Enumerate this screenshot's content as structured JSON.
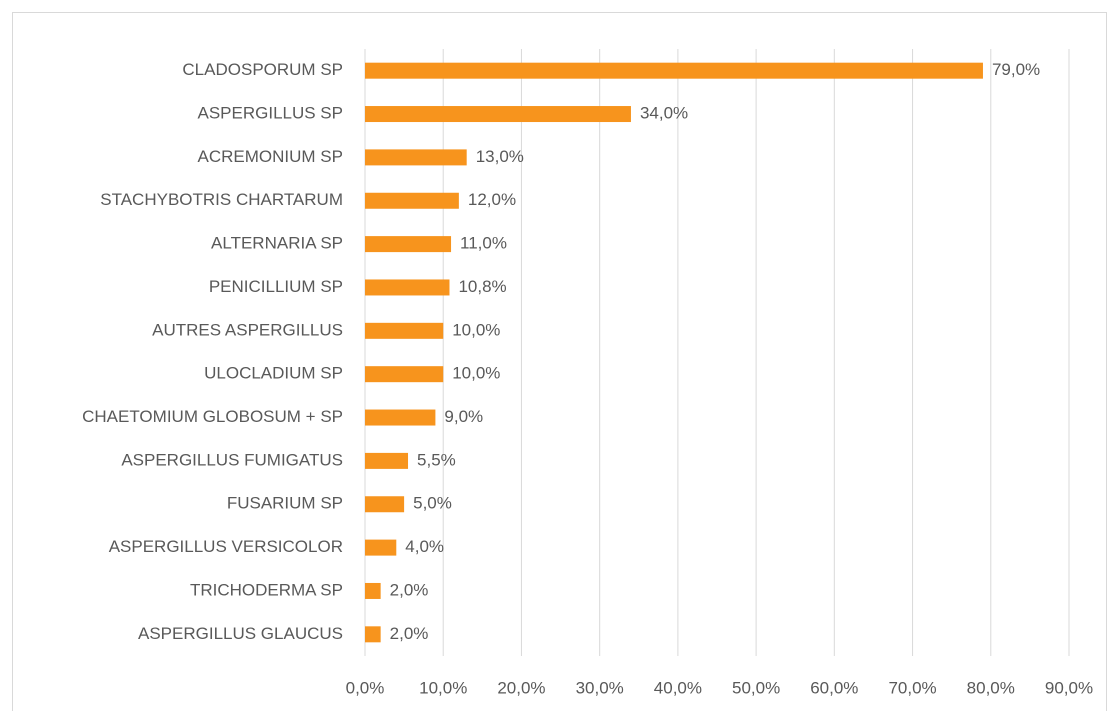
{
  "chart_data": {
    "type": "barh",
    "categories": [
      "CLADOSPORUM SP",
      "ASPERGILLUS SP",
      "ACREMONIUM SP",
      "STACHYBOTRIS CHARTARUM",
      "ALTERNARIA SP",
      "PENICILLIUM SP",
      "AUTRES ASPERGILLUS",
      "ULOCLADIUM SP",
      "CHAETOMIUM GLOBOSUM + SP",
      "ASPERGILLUS FUMIGATUS",
      "FUSARIUM SP",
      "ASPERGILLUS VERSICOLOR",
      "TRICHODERMA SP",
      "ASPERGILLUS GLAUCUS"
    ],
    "values": [
      79,
      34,
      13,
      12,
      11,
      10.8,
      10,
      10,
      9,
      5.5,
      5,
      4,
      2,
      2
    ],
    "value_labels": [
      "79,0%",
      "34,0%",
      "13,0%",
      "12,0%",
      "11,0%",
      "10,8%",
      "10,0%",
      "10,0%",
      "9,0%",
      "5,5%",
      "5,0%",
      "4,0%",
      "2,0%",
      "2,0%"
    ],
    "color": "#f7941d",
    "xlim": [
      0,
      90
    ],
    "xticks": [
      {
        "value": 0,
        "label": "0,0%"
      },
      {
        "value": 10,
        "label": "10,0%"
      },
      {
        "value": 20,
        "label": "20,0%"
      },
      {
        "value": 30,
        "label": "30,0%"
      },
      {
        "value": 40,
        "label": "40,0%"
      },
      {
        "value": 50,
        "label": "50,0%"
      },
      {
        "value": 60,
        "label": "60,0%"
      },
      {
        "value": 70,
        "label": "70,0%"
      },
      {
        "value": 80,
        "label": "80,0%"
      },
      {
        "value": 90,
        "label": "90,0%"
      }
    ],
    "grid": true
  }
}
